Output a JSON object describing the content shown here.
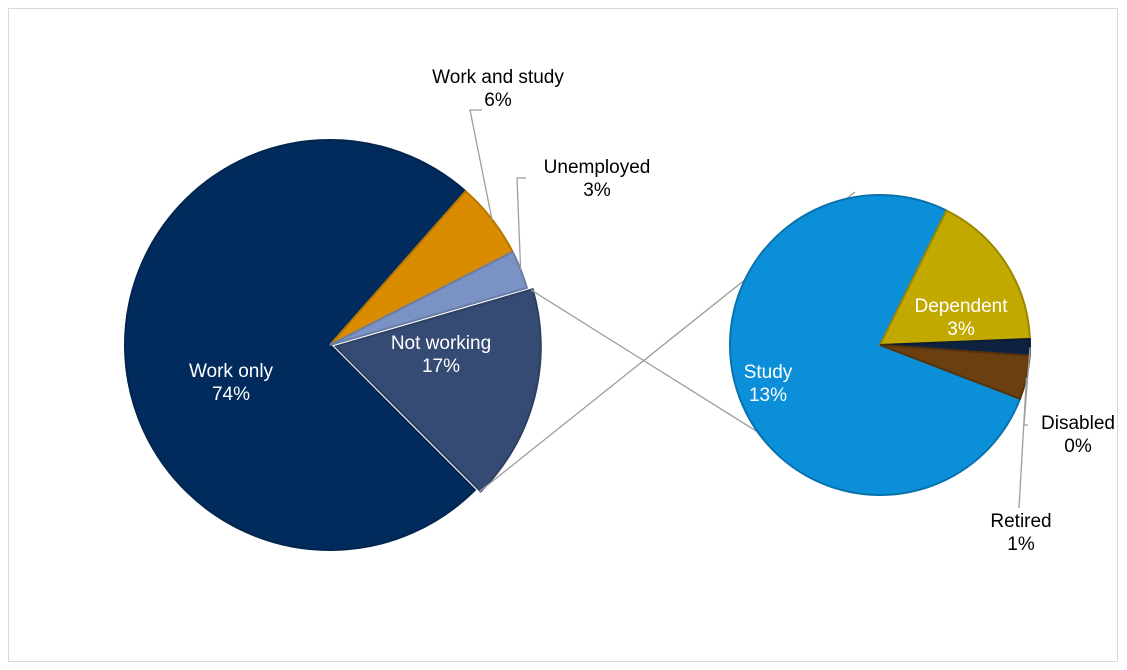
{
  "chart_data": {
    "type": "pie",
    "subtype": "pie-of-pie",
    "title": "",
    "main_pie": {
      "slices": [
        {
          "key": "work-only",
          "label": "Work only",
          "pct_label": "74%",
          "value": 74.0,
          "color": "#002b5c",
          "label_color": "#ffffff"
        },
        {
          "key": "work-and-study",
          "label": "Work and study",
          "pct_label": "6%",
          "value": 6.0,
          "color": "#d98c00",
          "label_color": "#000000"
        },
        {
          "key": "unemployed",
          "label": "Unemployed",
          "pct_label": "3%",
          "value": 3.0,
          "color": "#7b93c4",
          "label_color": "#000000"
        },
        {
          "key": "not-working",
          "label": "Not working",
          "pct_label": "17%",
          "value": 17.0,
          "color": "#354b73",
          "label_color": "#ffffff"
        }
      ]
    },
    "secondary_pie": {
      "breakdown_of": "Not working",
      "slices": [
        {
          "key": "study",
          "label": "Study",
          "pct_label": "13%",
          "value": 13.0,
          "color": "#0b8fd8",
          "label_color": "#ffffff"
        },
        {
          "key": "dependent",
          "label": "Dependent",
          "pct_label": "3%",
          "value": 2.9,
          "color": "#c2a900",
          "label_color": "#ffffff"
        },
        {
          "key": "disabled",
          "label": "Disabled",
          "pct_label": "0%",
          "value": 0.3,
          "color": "#0f2340",
          "label_color": "#000000"
        },
        {
          "key": "retired",
          "label": "Retired",
          "pct_label": "1%",
          "value": 0.8,
          "color": "#6b3f10",
          "label_color": "#000000"
        }
      ]
    },
    "legend": "none",
    "colors": {
      "leader_line": "#9e9e9e",
      "frame_border": "#d9d9d9"
    }
  }
}
